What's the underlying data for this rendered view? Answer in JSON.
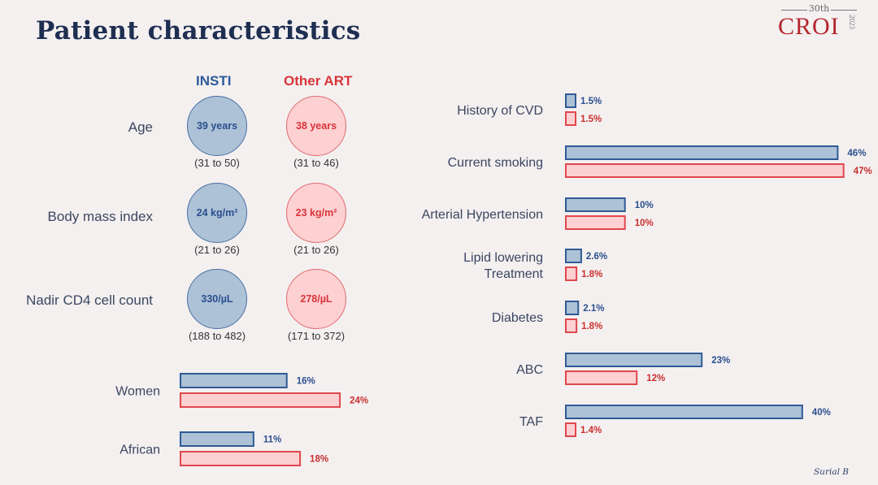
{
  "title": "Patient characteristics",
  "logo": {
    "ordinal": "30th",
    "name": "CROI",
    "year": "2023"
  },
  "footer": "Surial B",
  "colors": {
    "insti_fill": "#adc2d6",
    "insti_stroke": "#2f5a96",
    "insti_text": "#2b4f8e",
    "other_fill": "#fdd0d2",
    "other_stroke": "#e0474c",
    "other_text": "#c9302f"
  },
  "groups": {
    "insti": "INSTI",
    "other": "Other ART"
  },
  "circle_rows": [
    {
      "label": "Age",
      "insti": {
        "value": "39 years",
        "range": "(31 to 50)"
      },
      "other": {
        "value": "38 years",
        "range": "(31 to 46)"
      }
    },
    {
      "label": "Body mass index",
      "insti": {
        "value": "24 kg/m²",
        "range": "(21 to 26)"
      },
      "other": {
        "value": "23 kg/m²",
        "range": "(21 to 26)"
      }
    },
    {
      "label": "Nadir CD4 cell count",
      "insti": {
        "value": "330/µL",
        "range": "(188 to 482)"
      },
      "other": {
        "value": "278/µL",
        "range": "(171 to 372)"
      }
    }
  ],
  "chart_data": [
    {
      "type": "bar",
      "orientation": "horizontal",
      "title": "",
      "categories": [
        "Women",
        "African"
      ],
      "series": [
        {
          "name": "INSTI",
          "values": [
            16,
            11
          ],
          "labels": [
            "16%",
            "11%"
          ]
        },
        {
          "name": "Other ART",
          "values": [
            24,
            18
          ],
          "labels": [
            "24%",
            "18%"
          ]
        }
      ],
      "unit": "%",
      "grid": false
    },
    {
      "type": "bar",
      "orientation": "horizontal",
      "title": "",
      "categories": [
        "History of CVD",
        "Current smoking",
        "Arterial Hypertension",
        "Lipid lowering\nTreatment",
        "Diabetes",
        "ABC",
        "TAF"
      ],
      "series": [
        {
          "name": "INSTI",
          "values": [
            1.5,
            46,
            10,
            2.6,
            2.1,
            23,
            40
          ],
          "labels": [
            "1.5%",
            "46%",
            "10%",
            "2.6%",
            "2.1%",
            "23%",
            "40%"
          ]
        },
        {
          "name": "Other ART",
          "values": [
            1.5,
            47,
            10,
            1.8,
            1.8,
            12,
            1.4
          ],
          "labels": [
            "1.5%",
            "47%",
            "10%",
            "1.8%",
            "1.8%",
            "12%",
            "1.4%"
          ]
        }
      ],
      "unit": "%",
      "grid": false
    }
  ]
}
